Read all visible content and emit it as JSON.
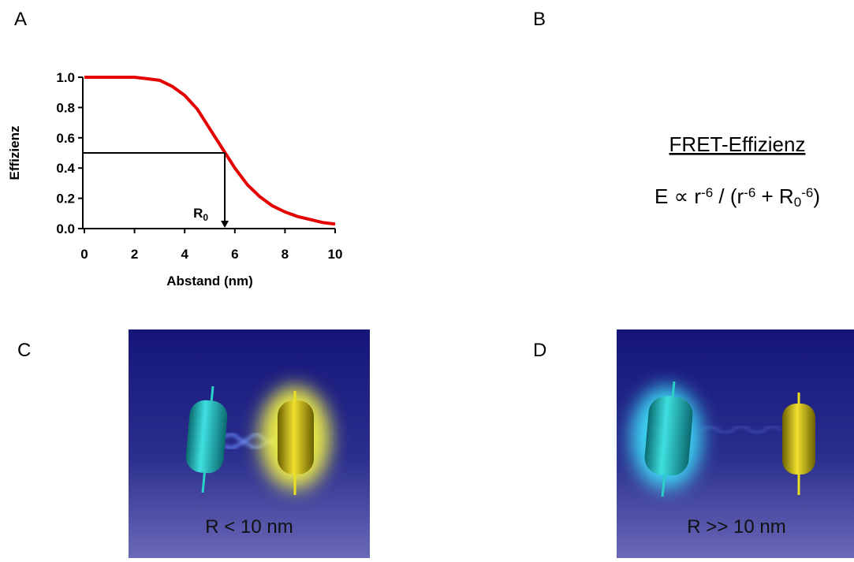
{
  "panels": {
    "a": "A",
    "b": "B",
    "c": "C",
    "d": "D"
  },
  "chart_data": {
    "type": "line",
    "x": [
      0,
      0.5,
      1,
      1.5,
      2,
      2.5,
      3,
      3.5,
      4,
      4.5,
      5,
      5.5,
      6,
      6.5,
      7,
      7.5,
      8,
      8.5,
      9,
      9.5,
      10
    ],
    "values": [
      1.0,
      1.0,
      1.0,
      1.0,
      1.0,
      0.99,
      0.98,
      0.94,
      0.88,
      0.79,
      0.66,
      0.53,
      0.4,
      0.29,
      0.21,
      0.15,
      0.11,
      0.08,
      0.06,
      0.04,
      0.03
    ],
    "color": "#e50000",
    "xlabel": "Abstand (nm)",
    "ylabel": "Effizienz",
    "xlim": [
      0,
      10
    ],
    "xticks": [
      0,
      2,
      4,
      6,
      8,
      10
    ],
    "ylim": [
      0,
      1
    ],
    "yticks": [
      {
        "value": 0,
        "label": "0.0"
      },
      {
        "value": 0.2,
        "label": "0.2"
      },
      {
        "value": 0.4,
        "label": "0.4"
      },
      {
        "value": 0.6,
        "label": "0.6"
      },
      {
        "value": 0.8,
        "label": "0.8"
      },
      {
        "value": 1,
        "label": "1.0"
      }
    ],
    "reference": {
      "x": 5.6,
      "y": 0.5,
      "label": "R",
      "label_sub": "0"
    }
  },
  "formula": {
    "heading": "FRET-Effizienz",
    "parts": [
      {
        "text": "E ∝ r",
        "style": "normal"
      },
      {
        "text": "-6",
        "style": "sup"
      },
      {
        "text": " / (r",
        "style": "normal"
      },
      {
        "text": "-6",
        "style": "sup"
      },
      {
        "text": " + R",
        "style": "normal"
      },
      {
        "text": "0",
        "style": "sub"
      },
      {
        "text": "-6",
        "style": "sup"
      },
      {
        "text": ")",
        "style": "normal"
      }
    ]
  },
  "images": {
    "c_caption": "R < 10 nm",
    "d_caption": "R >> 10 nm"
  }
}
